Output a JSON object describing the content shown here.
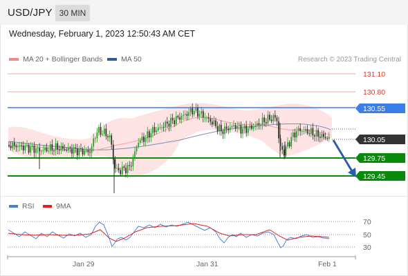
{
  "header": {
    "symbol": "USD/JPY",
    "interval": "30 MIN"
  },
  "timestamp": "Wednesday, February 1, 2023 12:50:43 AM CET",
  "legend": {
    "ma20": {
      "label": "MA 20 + Bollinger Bands",
      "color": "#f08a84"
    },
    "ma50": {
      "label": "MA 50",
      "color": "#2e5b9c"
    }
  },
  "credit": "Research © 2023 Trading Central",
  "rsi_legend": {
    "rsi": {
      "label": "RSI",
      "color": "#4a7fd4"
    },
    "ma9": {
      "label": "9MA",
      "color": "#e02020"
    }
  },
  "x_axis_labels": [
    "Jan 29",
    "Jan 31",
    "Feb 1"
  ],
  "rsi_axis_labels": [
    "70",
    "50",
    "30"
  ],
  "price_levels": [
    {
      "value": "131.10",
      "kind": "resistance-line",
      "color": "#f4a09c",
      "text_color": "#d23b2c"
    },
    {
      "value": "130.80",
      "kind": "resistance-line",
      "color": "#f4a09c",
      "text_color": "#d23b2c"
    },
    {
      "value": "130.55",
      "kind": "pivot",
      "color": "#3b7de9",
      "text_color": "#ffffff"
    },
    {
      "value": "130.05",
      "kind": "last-price",
      "color": "#333333",
      "text_color": "#ffffff"
    },
    {
      "value": "129.75",
      "kind": "target",
      "color": "#0a8a0a",
      "text_color": "#ffffff"
    },
    {
      "value": "129.45",
      "kind": "target",
      "color": "#0a8a0a",
      "text_color": "#ffffff"
    }
  ],
  "colors": {
    "candle_up": "#2ba02b",
    "candle_down": "#333333",
    "band_fill": "#fde0e0",
    "arrow": "#2a5fa8"
  },
  "chart_data": {
    "type": "candlestick",
    "title": "USD/JPY",
    "interval": "30 MIN",
    "x_labels": [
      "Jan 29",
      "Jan 31",
      "Feb 1"
    ],
    "ylim": [
      129.3,
      131.2
    ],
    "levels": [
      131.1,
      130.8,
      130.55,
      130.05,
      129.75,
      129.45
    ],
    "last_price": 130.05,
    "pivot": 130.55,
    "forecast": "bearish toward 129.75 then 129.45",
    "series": [
      {
        "name": "MA 20 + Bollinger Bands"
      },
      {
        "name": "MA 50"
      }
    ],
    "rsi": {
      "levels": [
        70,
        50,
        30
      ],
      "series": [
        "RSI",
        "9MA"
      ]
    }
  }
}
